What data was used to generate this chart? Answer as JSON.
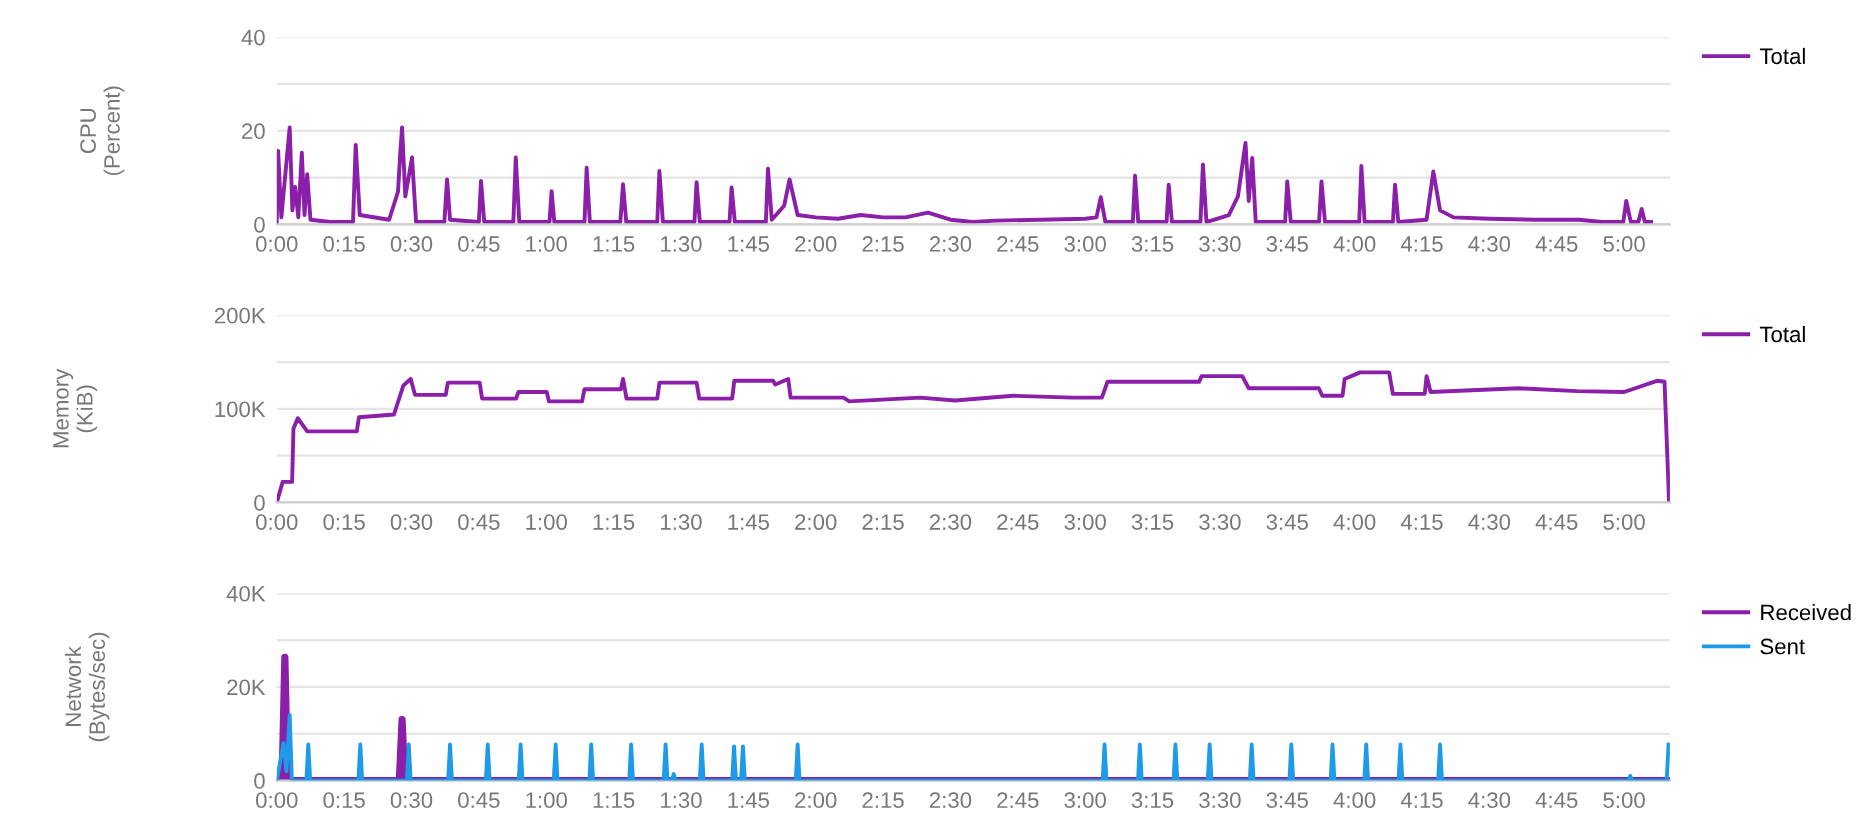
{
  "chart_data": [
    {
      "type": "line",
      "ylabel": "CPU\n(Percent)",
      "legend": "top right",
      "grid": "y",
      "marker": "none",
      "line_style": "solid",
      "xlim": [
        0,
        5.17
      ],
      "xticks": [
        {
          "value": 0,
          "label": "0:00"
        },
        {
          "value": 0.25,
          "label": "0:15"
        },
        {
          "value": 0.5,
          "label": "0:30"
        },
        {
          "value": 0.75,
          "label": "0:45"
        },
        {
          "value": 1,
          "label": "1:00"
        },
        {
          "value": 1.25,
          "label": "1:15"
        },
        {
          "value": 1.5,
          "label": "1:30"
        },
        {
          "value": 1.75,
          "label": "1:45"
        },
        {
          "value": 2,
          "label": "2:00"
        },
        {
          "value": 2.25,
          "label": "2:15"
        },
        {
          "value": 2.5,
          "label": "2:30"
        },
        {
          "value": 2.75,
          "label": "2:45"
        },
        {
          "value": 3,
          "label": "3:00"
        },
        {
          "value": 3.25,
          "label": "3:15"
        },
        {
          "value": 3.5,
          "label": "3:30"
        },
        {
          "value": 3.75,
          "label": "3:45"
        },
        {
          "value": 4,
          "label": "4:00"
        },
        {
          "value": 4.25,
          "label": "4:15"
        },
        {
          "value": 4.5,
          "label": "4:30"
        },
        {
          "value": 4.75,
          "label": "4:45"
        },
        {
          "value": 5,
          "label": "5:00"
        }
      ],
      "ylim": [
        0,
        40
      ],
      "yticks": [
        0,
        {
          "value": 10,
          "label": null
        },
        20,
        {
          "value": 30,
          "label": null
        },
        40
      ],
      "series": [
        {
          "name": "Total",
          "color": "#8b1fa9",
          "x": [
            0,
            0.005,
            0.017,
            0.048,
            0.058,
            0.068,
            0.08,
            0.093,
            0.103,
            0.113,
            0.125,
            0.2,
            0.283,
            0.293,
            0.308,
            0.417,
            0.45,
            0.458,
            0.465,
            0.477,
            0.502,
            0.517,
            0.622,
            0.632,
            0.643,
            0.75,
            0.758,
            0.77,
            0.878,
            0.887,
            0.9,
            1.012,
            1.02,
            1.03,
            1.142,
            1.15,
            1.162,
            1.275,
            1.285,
            1.297,
            1.412,
            1.42,
            1.433,
            1.55,
            1.558,
            1.57,
            1.68,
            1.688,
            1.7,
            1.815,
            1.823,
            1.837,
            1.883,
            1.903,
            1.933,
            2,
            2.083,
            2.167,
            2.25,
            2.333,
            2.417,
            2.5,
            2.583,
            2.667,
            2.833,
            3,
            3.042,
            3.058,
            3.075,
            3.177,
            3.185,
            3.197,
            3.302,
            3.31,
            3.322,
            3.428,
            3.437,
            3.45,
            3.533,
            3.567,
            3.595,
            3.607,
            3.62,
            3.633,
            3.742,
            3.75,
            3.763,
            3.868,
            3.877,
            3.89,
            4.017,
            4.025,
            4.037,
            4.142,
            4.15,
            4.162,
            4.267,
            4.292,
            4.317,
            4.367,
            4.5,
            4.667,
            4.833,
            4.917,
            4.997,
            5.008,
            5.025,
            5.053,
            5.065,
            5.077,
            5.1
          ],
          "values": [
            0.5,
            15.7,
            1.5,
            20.7,
            3,
            8,
            1.5,
            15.3,
            2,
            10.7,
            1,
            0.5,
            0.5,
            17,
            2,
            1,
            7,
            15,
            20.7,
            6,
            14.3,
            0.5,
            0.5,
            9.6,
            1,
            0.5,
            9.3,
            0.5,
            0.5,
            14.3,
            0.5,
            0.5,
            7.1,
            0.5,
            0.5,
            12.1,
            0.5,
            0.5,
            8.6,
            0.5,
            0.5,
            11.4,
            0.5,
            0.5,
            9,
            0.5,
            0.5,
            7.9,
            0.5,
            0.5,
            11.9,
            1,
            4,
            9.6,
            2,
            1.5,
            1.2,
            2,
            1.5,
            1.5,
            2.5,
            1,
            0.5,
            0.8,
            1,
            1.2,
            1.5,
            5.8,
            0.5,
            0.5,
            10.4,
            0.5,
            0.5,
            8.5,
            0.5,
            0.5,
            12.8,
            0.5,
            2,
            6,
            17.4,
            5,
            14.2,
            0.5,
            0.5,
            9.2,
            0.5,
            0.5,
            9.2,
            0.5,
            0.5,
            12.5,
            0.5,
            0.5,
            8.5,
            0.5,
            1,
            11.3,
            3,
            1.5,
            1.2,
            1,
            1,
            0.5,
            0.5,
            5,
            0.5,
            0.5,
            3.3,
            0.5,
            0.5
          ]
        }
      ]
    },
    {
      "type": "line",
      "ylabel": "Memory\n(KiB)",
      "legend": "top right",
      "grid": "y",
      "marker": "none",
      "line_style": "solid",
      "xlim": [
        0,
        5.17
      ],
      "xticks": [
        {
          "value": 0,
          "label": "0:00"
        },
        {
          "value": 0.25,
          "label": "0:15"
        },
        {
          "value": 0.5,
          "label": "0:30"
        },
        {
          "value": 0.75,
          "label": "0:45"
        },
        {
          "value": 1,
          "label": "1:00"
        },
        {
          "value": 1.25,
          "label": "1:15"
        },
        {
          "value": 1.5,
          "label": "1:30"
        },
        {
          "value": 1.75,
          "label": "1:45"
        },
        {
          "value": 2,
          "label": "2:00"
        },
        {
          "value": 2.25,
          "label": "2:15"
        },
        {
          "value": 2.5,
          "label": "2:30"
        },
        {
          "value": 2.75,
          "label": "2:45"
        },
        {
          "value": 3,
          "label": "3:00"
        },
        {
          "value": 3.25,
          "label": "3:15"
        },
        {
          "value": 3.5,
          "label": "3:30"
        },
        {
          "value": 3.75,
          "label": "3:45"
        },
        {
          "value": 4,
          "label": "4:00"
        },
        {
          "value": 4.25,
          "label": "4:15"
        },
        {
          "value": 4.5,
          "label": "4:30"
        },
        {
          "value": 4.75,
          "label": "4:45"
        },
        {
          "value": 5,
          "label": "5:00"
        }
      ],
      "ylim": [
        0,
        200000
      ],
      "yticks": [
        {
          "value": 0,
          "label": "0"
        },
        {
          "value": 50000,
          "label": null
        },
        {
          "value": 100000,
          "label": "100K"
        },
        {
          "value": 150000,
          "label": null
        },
        {
          "value": 200000,
          "label": "200K"
        }
      ],
      "series": [
        {
          "name": "Total",
          "color": "#8b1fa9",
          "x": [
            0,
            0.022,
            0.057,
            0.062,
            0.078,
            0.113,
            0.297,
            0.305,
            0.435,
            0.47,
            0.497,
            0.513,
            0.627,
            0.635,
            0.753,
            0.762,
            0.888,
            0.897,
            1.002,
            1.01,
            1.133,
            1.142,
            1.277,
            1.285,
            1.298,
            1.412,
            1.42,
            1.558,
            1.568,
            1.69,
            1.698,
            1.842,
            1.85,
            1.898,
            1.907,
            2.103,
            2.125,
            2.387,
            2.517,
            2.733,
            2.953,
            3.062,
            3.083,
            3.423,
            3.432,
            3.583,
            3.607,
            3.867,
            3.88,
            3.955,
            3.963,
            4.02,
            4.128,
            4.142,
            4.26,
            4.267,
            4.282,
            4.608,
            4.825,
            5,
            5.122,
            5.15,
            5.167
          ],
          "values": [
            0,
            22000,
            22000,
            79000,
            90000,
            76000,
            76000,
            91000,
            94000,
            125000,
            132000,
            115000,
            115000,
            128000,
            128000,
            111000,
            111000,
            118000,
            118000,
            108000,
            108000,
            121000,
            121000,
            132000,
            111000,
            111000,
            128000,
            128000,
            111000,
            111000,
            130000,
            130000,
            126000,
            132000,
            112000,
            112000,
            108000,
            112000,
            109000,
            114000,
            112000,
            112000,
            129000,
            129000,
            135000,
            135000,
            122000,
            122000,
            114000,
            114000,
            132000,
            139000,
            139000,
            116000,
            116000,
            135000,
            118000,
            122000,
            119000,
            118000,
            130000,
            129000,
            0
          ]
        }
      ]
    },
    {
      "type": "line",
      "ylabel": "Network\n(Bytes/sec)",
      "legend": "top right",
      "grid": "y",
      "marker": "none",
      "line_style": "solid",
      "xlim": [
        0,
        5.17
      ],
      "xticks": [
        {
          "value": 0,
          "label": "0:00"
        },
        {
          "value": 0.25,
          "label": "0:15"
        },
        {
          "value": 0.5,
          "label": "0:30"
        },
        {
          "value": 0.75,
          "label": "0:45"
        },
        {
          "value": 1,
          "label": "1:00"
        },
        {
          "value": 1.25,
          "label": "1:15"
        },
        {
          "value": 1.5,
          "label": "1:30"
        },
        {
          "value": 1.75,
          "label": "1:45"
        },
        {
          "value": 2,
          "label": "2:00"
        },
        {
          "value": 2.25,
          "label": "2:15"
        },
        {
          "value": 2.5,
          "label": "2:30"
        },
        {
          "value": 2.75,
          "label": "2:45"
        },
        {
          "value": 3,
          "label": "3:00"
        },
        {
          "value": 3.25,
          "label": "3:15"
        },
        {
          "value": 3.5,
          "label": "3:30"
        },
        {
          "value": 3.75,
          "label": "3:45"
        },
        {
          "value": 4,
          "label": "4:00"
        },
        {
          "value": 4.25,
          "label": "4:15"
        },
        {
          "value": 4.5,
          "label": "4:30"
        },
        {
          "value": 4.75,
          "label": "4:45"
        },
        {
          "value": 5,
          "label": "5:00"
        }
      ],
      "ylim": [
        0,
        40000
      ],
      "yticks": [
        {
          "value": 0,
          "label": "0"
        },
        {
          "value": 10000,
          "label": null
        },
        {
          "value": 20000,
          "label": "20K"
        },
        {
          "value": 30000,
          "label": null
        },
        {
          "value": 40000,
          "label": "40K"
        }
      ],
      "series": [
        {
          "name": "Received",
          "color": "#8b1fa9",
          "x": [
            0,
            0.02,
            0.03,
            0.04,
            0.455,
            0.465,
            0.475,
            5.167
          ],
          "values": [
            0,
            0,
            26300,
            0,
            0,
            13000,
            0,
            0
          ]
        },
        {
          "name": "Sent",
          "color": "#1e9be8",
          "x": [
            0,
            0.025,
            0.036,
            0.048,
            0.056,
            0.11,
            0.117,
            0.124,
            0.303,
            0.31,
            0.317,
            0.483,
            0.49,
            0.497,
            0.636,
            0.643,
            0.65,
            0.776,
            0.783,
            0.79,
            0.898,
            0.905,
            0.912,
            1.028,
            1.035,
            1.042,
            1.16,
            1.167,
            1.174,
            1.308,
            1.315,
            1.322,
            1.436,
            1.443,
            1.45,
            1.466,
            1.473,
            1.48,
            1.57,
            1.577,
            1.584,
            1.69,
            1.697,
            1.704,
            1.723,
            1.73,
            1.737,
            1.926,
            1.933,
            1.94,
            3.065,
            3.072,
            3.079,
            3.196,
            3.203,
            3.21,
            3.328,
            3.335,
            3.342,
            3.455,
            3.462,
            3.469,
            3.611,
            3.618,
            3.625,
            3.758,
            3.765,
            3.772,
            3.911,
            3.918,
            3.925,
            4.036,
            4.043,
            4.05,
            4.163,
            4.17,
            4.177,
            4.31,
            4.317,
            4.324,
            5.016,
            5.023,
            5.03,
            5.158,
            5.165
          ],
          "values": [
            0,
            8000,
            2000,
            14000,
            0,
            0,
            7700,
            0,
            0,
            7700,
            0,
            0,
            7700,
            0,
            0,
            7700,
            0,
            0,
            7700,
            0,
            0,
            7700,
            0,
            0,
            7700,
            0,
            0,
            7700,
            0,
            0,
            7700,
            0,
            0,
            7700,
            0,
            0,
            1400,
            0,
            0,
            7700,
            0,
            0,
            7300,
            0,
            0,
            7300,
            0,
            0,
            7700,
            0,
            0,
            7700,
            0,
            0,
            7700,
            0,
            0,
            7700,
            0,
            0,
            7700,
            0,
            0,
            7700,
            0,
            0,
            7700,
            0,
            0,
            7700,
            0,
            0,
            7700,
            0,
            0,
            7700,
            0,
            0,
            7700,
            0,
            0,
            1000,
            0,
            0,
            7700
          ]
        }
      ]
    }
  ]
}
